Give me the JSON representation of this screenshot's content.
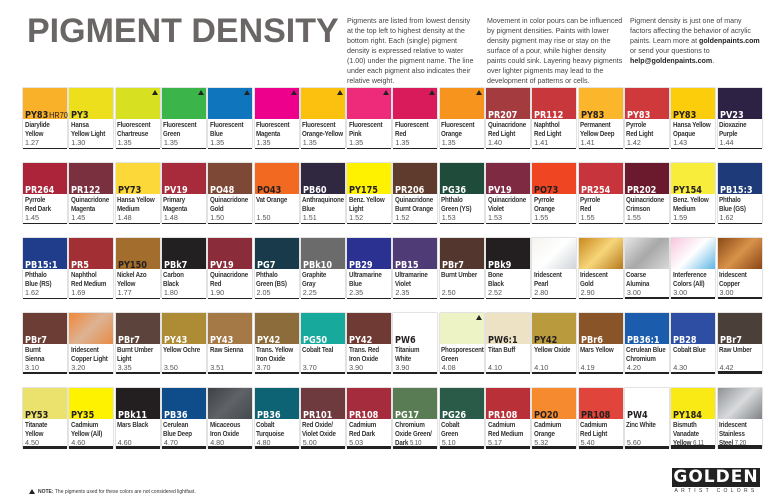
{
  "title": "PIGMENT DENSITY",
  "intro": [
    {
      "parts": [
        {
          "t": "Pigments are listed from lowest density at the top left to highest density at the bottom right. Each (single) pigment density is expressed relative to water (1.00) under the pigment name. The line under each pigment also indicates their relative weight."
        }
      ]
    },
    {
      "parts": [
        {
          "t": "Movement in color pours can be influenced by pigment densities. Paints with lower density pigment may rise or stay on the surface of a pour, while higher density paints could sink. Layering heavy pigments over lighter pigments may lead to the development of patterns or cells."
        }
      ]
    },
    {
      "parts": [
        {
          "t": "Pigment density is just one of many factors affecting the behavior of acrylic paints. Learn more at "
        },
        {
          "t": "goldenpaints.com",
          "b": true
        },
        {
          "t": " or send your questions to "
        },
        {
          "t": "help@goldenpaints.com",
          "b": true
        },
        {
          "t": "."
        }
      ]
    }
  ],
  "rows": [
    [
      {
        "code": "PY83",
        "sub": "HR70",
        "name": "Diarylide\nYellow",
        "density": "1.27",
        "color": "#f9b12a",
        "dark": true
      },
      {
        "code": "PY3",
        "name": "Hansa\nYellow Light",
        "density": "1.30",
        "color": "#eedf1c",
        "dark": true
      },
      {
        "code": "",
        "name": "Fluorescent\nChartreuse",
        "density": "1.35",
        "color": "#d7e021",
        "warn": true
      },
      {
        "code": "",
        "name": "Fluorescent\nGreen",
        "density": "1.35",
        "color": "#3bb54a",
        "warn": true
      },
      {
        "code": "",
        "name": "Fluorescent\nBlue",
        "density": "1.35",
        "color": "#0f75bc",
        "warn": true
      },
      {
        "code": "",
        "name": "Fluorescent\nMagenta",
        "density": "1.35",
        "color": "#ec008c",
        "warn": true
      },
      {
        "code": "",
        "name": "Fluorescent\nOrange-Yellow",
        "density": "1.35",
        "color": "#fcc10f",
        "warn": true
      },
      {
        "code": "",
        "name": "Fluorescent\nPink",
        "density": "1.35",
        "color": "#ee2a7b",
        "warn": true
      },
      {
        "code": "",
        "name": "Fluorescent\nRed",
        "density": "1.35",
        "color": "#d91b5c",
        "warn": true
      },
      {
        "code": "",
        "name": "Fluorescent\nOrange",
        "density": "1.35",
        "color": "#f7941d",
        "warn": true
      },
      {
        "code": "PR207",
        "name": "Quinacridone\nRed Light",
        "density": "1.40",
        "color": "#a33b3f"
      },
      {
        "code": "PR112",
        "name": "Naphthol\nRed Light",
        "density": "1.41",
        "color": "#c7373b"
      },
      {
        "code": "PY83",
        "name": "Permanent\nYellow Deep",
        "density": "1.41",
        "color": "#fbb62b",
        "dark": true
      },
      {
        "code": "PY83",
        "name": "Pyrrole\nRed Light",
        "density": "1.42",
        "color": "#d0393c"
      },
      {
        "code": "PY83",
        "name": "Hansa Yellow\nOpaque",
        "density": "1.43",
        "color": "#fccd0a",
        "dark": true
      },
      {
        "code": "PV23",
        "name": "Dioxazine\nPurple",
        "density": "1.44",
        "color": "#2e2244"
      }
    ],
    [
      {
        "code": "PR264",
        "name": "Pyrrole\nRed Dark",
        "density": "1.45",
        "color": "#ab2439"
      },
      {
        "code": "PR122",
        "name": "Quinacridone\nMagenta",
        "density": "1.45",
        "color": "#7b3040"
      },
      {
        "code": "PY73",
        "name": "Hansa Yellow\nMedium",
        "density": "1.48",
        "color": "#fcd838",
        "dark": true
      },
      {
        "code": "PV19",
        "name": "Primary\nMagenta",
        "density": "1.48",
        "color": "#a82b3b"
      },
      {
        "code": "PO48",
        "name": "Quinacridone\nGold",
        "density": "1.50",
        "color": "#7d4836"
      },
      {
        "code": "PO43",
        "name": "Vat Orange",
        "density": "1.50",
        "color": "#f26a22",
        "dark": true
      },
      {
        "code": "PB60",
        "name": "Anthraquinone\nBlue",
        "density": "1.51",
        "color": "#302840"
      },
      {
        "code": "PY175",
        "name": "Benz. Yellow\nLight",
        "density": "1.52",
        "color": "#fff200",
        "dark": true
      },
      {
        "code": "PR206",
        "name": "Quinacridone\nBurnt Orange",
        "density": "1.52",
        "color": "#5e3b2c"
      },
      {
        "code": "PG36",
        "name": "Phthalo\nGreen (YS)",
        "density": "1.53",
        "color": "#1f4b3b"
      },
      {
        "code": "PV19",
        "name": "Quinacridone\nViolet",
        "density": "1.53",
        "color": "#7f2a43"
      },
      {
        "code": "PO73",
        "name": "Pyrrole\nOrange",
        "density": "1.55",
        "color": "#ef4523",
        "dark": true
      },
      {
        "code": "PR254",
        "name": "Pyrrole\nRed",
        "density": "1.55",
        "color": "#c7343c"
      },
      {
        "code": "PR202",
        "name": "Quinacridone\nCrimson",
        "density": "1.55",
        "color": "#6b1a2e"
      },
      {
        "code": "PY154",
        "name": "Benz. Yellow\nMedium",
        "density": "1.59",
        "color": "#f7ed3a",
        "dark": true
      },
      {
        "code": "PB15:3",
        "name": "Phthalo\nBlue (GS)",
        "density": "1.62",
        "color": "#1e3a78"
      }
    ],
    [
      {
        "code": "PB15:1",
        "name": "Phthalo\nBlue (RS)",
        "density": "1.62",
        "color": "#1f3d8a"
      },
      {
        "code": "PR5",
        "name": "Naphthol\nRed Medium",
        "density": "1.69",
        "color": "#a12f33"
      },
      {
        "code": "PY150",
        "name": "Nickel Azo\nYellow",
        "density": "1.77",
        "color": "#a26d2d",
        "dark": true
      },
      {
        "code": "PBk7",
        "name": "Carbon\nBlack",
        "density": "1.80",
        "color": "#222021"
      },
      {
        "code": "PV19",
        "name": "Quinacridone\nRed",
        "density": "1.90",
        "color": "#8b2c3a"
      },
      {
        "code": "PG7",
        "name": "Phthalo\nGreen (BS)",
        "density": "2.05",
        "color": "#183a4a"
      },
      {
        "code": "PBk10",
        "name": "Graphite\nGray",
        "density": "2.25",
        "color": "#6b6b6b"
      },
      {
        "code": "PB29",
        "name": "Ultramarine\nBlue",
        "density": "2.35",
        "color": "#2a3190"
      },
      {
        "code": "PB15",
        "name": "Ultramarine\nViolet",
        "density": "2.35",
        "color": "#4f3b76"
      },
      {
        "code": "PBr7",
        "name": "Burnt Umber",
        "density": "2.50",
        "color": "#53372e"
      },
      {
        "code": "PBk9",
        "name": "Bone\nBlack",
        "density": "2.52",
        "color": "#231f20"
      },
      {
        "code": "",
        "name": "Iridescent\nPearl",
        "density": "2.80",
        "gradient": [
          "#f4f3ee",
          "#ffffff",
          "#cfd3d8"
        ]
      },
      {
        "code": "",
        "name": "Iridescent\nGold",
        "density": "2.90",
        "gradient": [
          "#c98a1e",
          "#f7d67a",
          "#b5791c"
        ]
      },
      {
        "code": "",
        "name": "Coarse\nAlumina",
        "density": "3.00",
        "gradient": [
          "#e6e6e6",
          "#a8a8a8",
          "#d9d9d9"
        ]
      },
      {
        "code": "",
        "name": "Interference\nColors (All)",
        "density": "3.00",
        "gradient": [
          "#f7c6dc",
          "#ffffff",
          "#5fb6e6"
        ]
      },
      {
        "code": "",
        "name": "Iridescent\nCopper",
        "density": "3.00",
        "gradient": [
          "#8c4a17",
          "#d8924a",
          "#8a4616"
        ]
      }
    ],
    [
      {
        "code": "PBr7",
        "name": "Burnt\nSienna",
        "density": "3.10",
        "color": "#6b3d35"
      },
      {
        "code": "",
        "name": "Iridescent\nCopper Light",
        "density": "3.20",
        "gradient": [
          "#f1873a",
          "#dcb394",
          "#e88b45"
        ]
      },
      {
        "code": "PBr7",
        "name": "Burnt Umber\nLight",
        "density": "3.35",
        "color": "#5c433b"
      },
      {
        "code": "PY43",
        "name": "Yellow Ochre",
        "density": "3.50",
        "color": "#ae8b35"
      },
      {
        "code": "PY43",
        "name": "Raw Sienna",
        "density": "3.51",
        "color": "#a57946"
      },
      {
        "code": "PY42",
        "name": "Trans. Yellow\nIron Oxide",
        "density": "3.70",
        "color": "#8c6c3a"
      },
      {
        "code": "PG50",
        "name": "Cobalt Teal",
        "density": "3.70",
        "color": "#17a99b"
      },
      {
        "code": "PY42",
        "name": "Trans. Red\nIron Oxide",
        "density": "3.90",
        "color": "#6e3a33"
      },
      {
        "code": "PW6",
        "name": "Titanium\nWhite",
        "density": "3.90",
        "color": "#ffffff",
        "dark": true
      },
      {
        "code": "",
        "name": "Phosporescent\nGreen",
        "density": "4.08",
        "color": "#eef3c5",
        "warn": true
      },
      {
        "code": "PW6:1",
        "name": "Titan Buff",
        "density": "4.10",
        "color": "#ede2c4",
        "dark": true
      },
      {
        "code": "PY42",
        "name": "Yellow Oxide",
        "density": "4.10",
        "color": "#b99b3e",
        "dark": true
      },
      {
        "code": "PBr6",
        "name": "Mars Yellow",
        "density": "4.19",
        "color": "#8a5429"
      },
      {
        "code": "PB36:1",
        "name": "Cerulean Blue\nChromium",
        "density": "4.20",
        "color": "#1b5dac"
      },
      {
        "code": "PB28",
        "name": "Cobalt Blue",
        "density": "4.30",
        "color": "#2e4ea3"
      },
      {
        "code": "PBr7",
        "name": "Raw Umber",
        "density": "4.42",
        "color": "#4a4039"
      }
    ],
    [
      {
        "code": "PY53",
        "name": "Titanate\nYellow",
        "density": "4.50",
        "color": "#ebe16d",
        "dark": true
      },
      {
        "code": "PY35",
        "name": "Cadmium\nYellow (All)",
        "density": "4.60",
        "color": "#fff200",
        "dark": true
      },
      {
        "code": "PBk11",
        "name": "Mars Black",
        "density": "4.60",
        "color": "#231f20"
      },
      {
        "code": "PB36",
        "name": "Cerulean\nBlue Deep",
        "density": "4.70",
        "color": "#0f4c8a"
      },
      {
        "code": "",
        "name": "Micaceous\nIron Oxide",
        "density": "4.80",
        "gradient": [
          "#3e4246",
          "#5f6367",
          "#45494d"
        ]
      },
      {
        "code": "PB36",
        "name": "Cobalt\nTurquoise",
        "density": "4.80",
        "color": "#0d6273"
      },
      {
        "code": "PR101",
        "name": "Red Oxide/\nViolet Oxide",
        "density": "5.00",
        "color": "#6e3a3e"
      },
      {
        "code": "PR108",
        "name": "Cadmium\nRed Dark",
        "density": "5.03",
        "color": "#a52c3c"
      },
      {
        "code": "PG17",
        "name": "Chromium\nOxide Green/\nDark",
        "density": "5.10",
        "color": "#5a7c55",
        "inline": true
      },
      {
        "code": "PG26",
        "name": "Cobalt\nGreen",
        "density": "5.10",
        "color": "#2a5a48"
      },
      {
        "code": "PR108",
        "name": "Cadmium\nRed Medium",
        "density": "5.17",
        "color": "#ba3038"
      },
      {
        "code": "PO20",
        "name": "Cadmium\nOrange",
        "density": "5.32",
        "color": "#f68a2e",
        "dark": true
      },
      {
        "code": "PR108",
        "name": "Cadmium\nRed Light",
        "density": "5.40",
        "color": "#e0443a",
        "dark": true
      },
      {
        "code": "PW4",
        "name": "Zinc White",
        "density": "5.60",
        "color": "#ffffff",
        "dark": true
      },
      {
        "code": "PY184",
        "name": "Bismuth\nVanadate\nYellow",
        "density": "6.11",
        "color": "#f9ea16",
        "dark": true,
        "inline": true
      },
      {
        "code": "",
        "name": "Iridescent\nStainless\nSteel",
        "density": "7.20",
        "gradient": [
          "#8e9194",
          "#d8dadc",
          "#7f8285"
        ],
        "inline": true
      }
    ]
  ],
  "note": {
    "label": "NOTE:",
    "text": " The pigments used for these colors are not considered lightfast."
  },
  "logo": {
    "name": "GOLDEN",
    "tagline": "ARTIST COLORS"
  }
}
